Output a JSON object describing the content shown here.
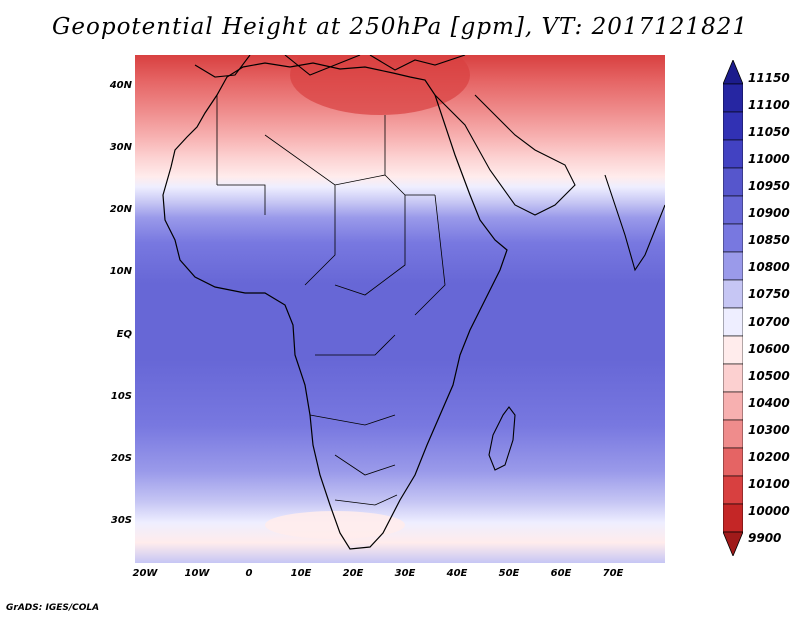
{
  "title": "Geopotential Height at 250hPa [gpm], VT: 2017121821",
  "credit": "GrADS: IGES/COLA",
  "map": {
    "projection": "latlon",
    "lon_range": [
      -22,
      80
    ],
    "lat_range": [
      -37,
      45
    ],
    "lat_labels": [
      {
        "label": "40N",
        "lat": 40
      },
      {
        "label": "30N",
        "lat": 30
      },
      {
        "label": "20N",
        "lat": 20
      },
      {
        "label": "10N",
        "lat": 10
      },
      {
        "label": "EQ",
        "lat": 0
      },
      {
        "label": "10S",
        "lat": -10
      },
      {
        "label": "20S",
        "lat": -20
      },
      {
        "label": "30S",
        "lat": -30
      }
    ],
    "lon_labels": [
      {
        "label": "20W",
        "lon": -20
      },
      {
        "label": "10W",
        "lon": -10
      },
      {
        "label": "0",
        "lon": 0
      },
      {
        "label": "10E",
        "lon": 10
      },
      {
        "label": "20E",
        "lon": 20
      },
      {
        "label": "30E",
        "lon": 30
      },
      {
        "label": "40E",
        "lon": 40
      },
      {
        "label": "50E",
        "lon": 50
      },
      {
        "label": "60E",
        "lon": 60
      },
      {
        "label": "70E",
        "lon": 70
      }
    ]
  },
  "colorbar": {
    "labels": [
      "11150",
      "11100",
      "11050",
      "11000",
      "10950",
      "10900",
      "10850",
      "10800",
      "10750",
      "10700",
      "10600",
      "10500",
      "10400",
      "10300",
      "10200",
      "10100",
      "10000",
      "9900"
    ],
    "colors": [
      "#1c1c8c",
      "#2626a2",
      "#3131b4",
      "#4242c2",
      "#5656cc",
      "#6767d6",
      "#7878e0",
      "#9a9aea",
      "#c6c6f4",
      "#eeeeff",
      "#ffecec",
      "#fcd0d0",
      "#f7b0b0",
      "#ef8c8c",
      "#e56464",
      "#d84040",
      "#c42626",
      "#a01a1a"
    ]
  }
}
